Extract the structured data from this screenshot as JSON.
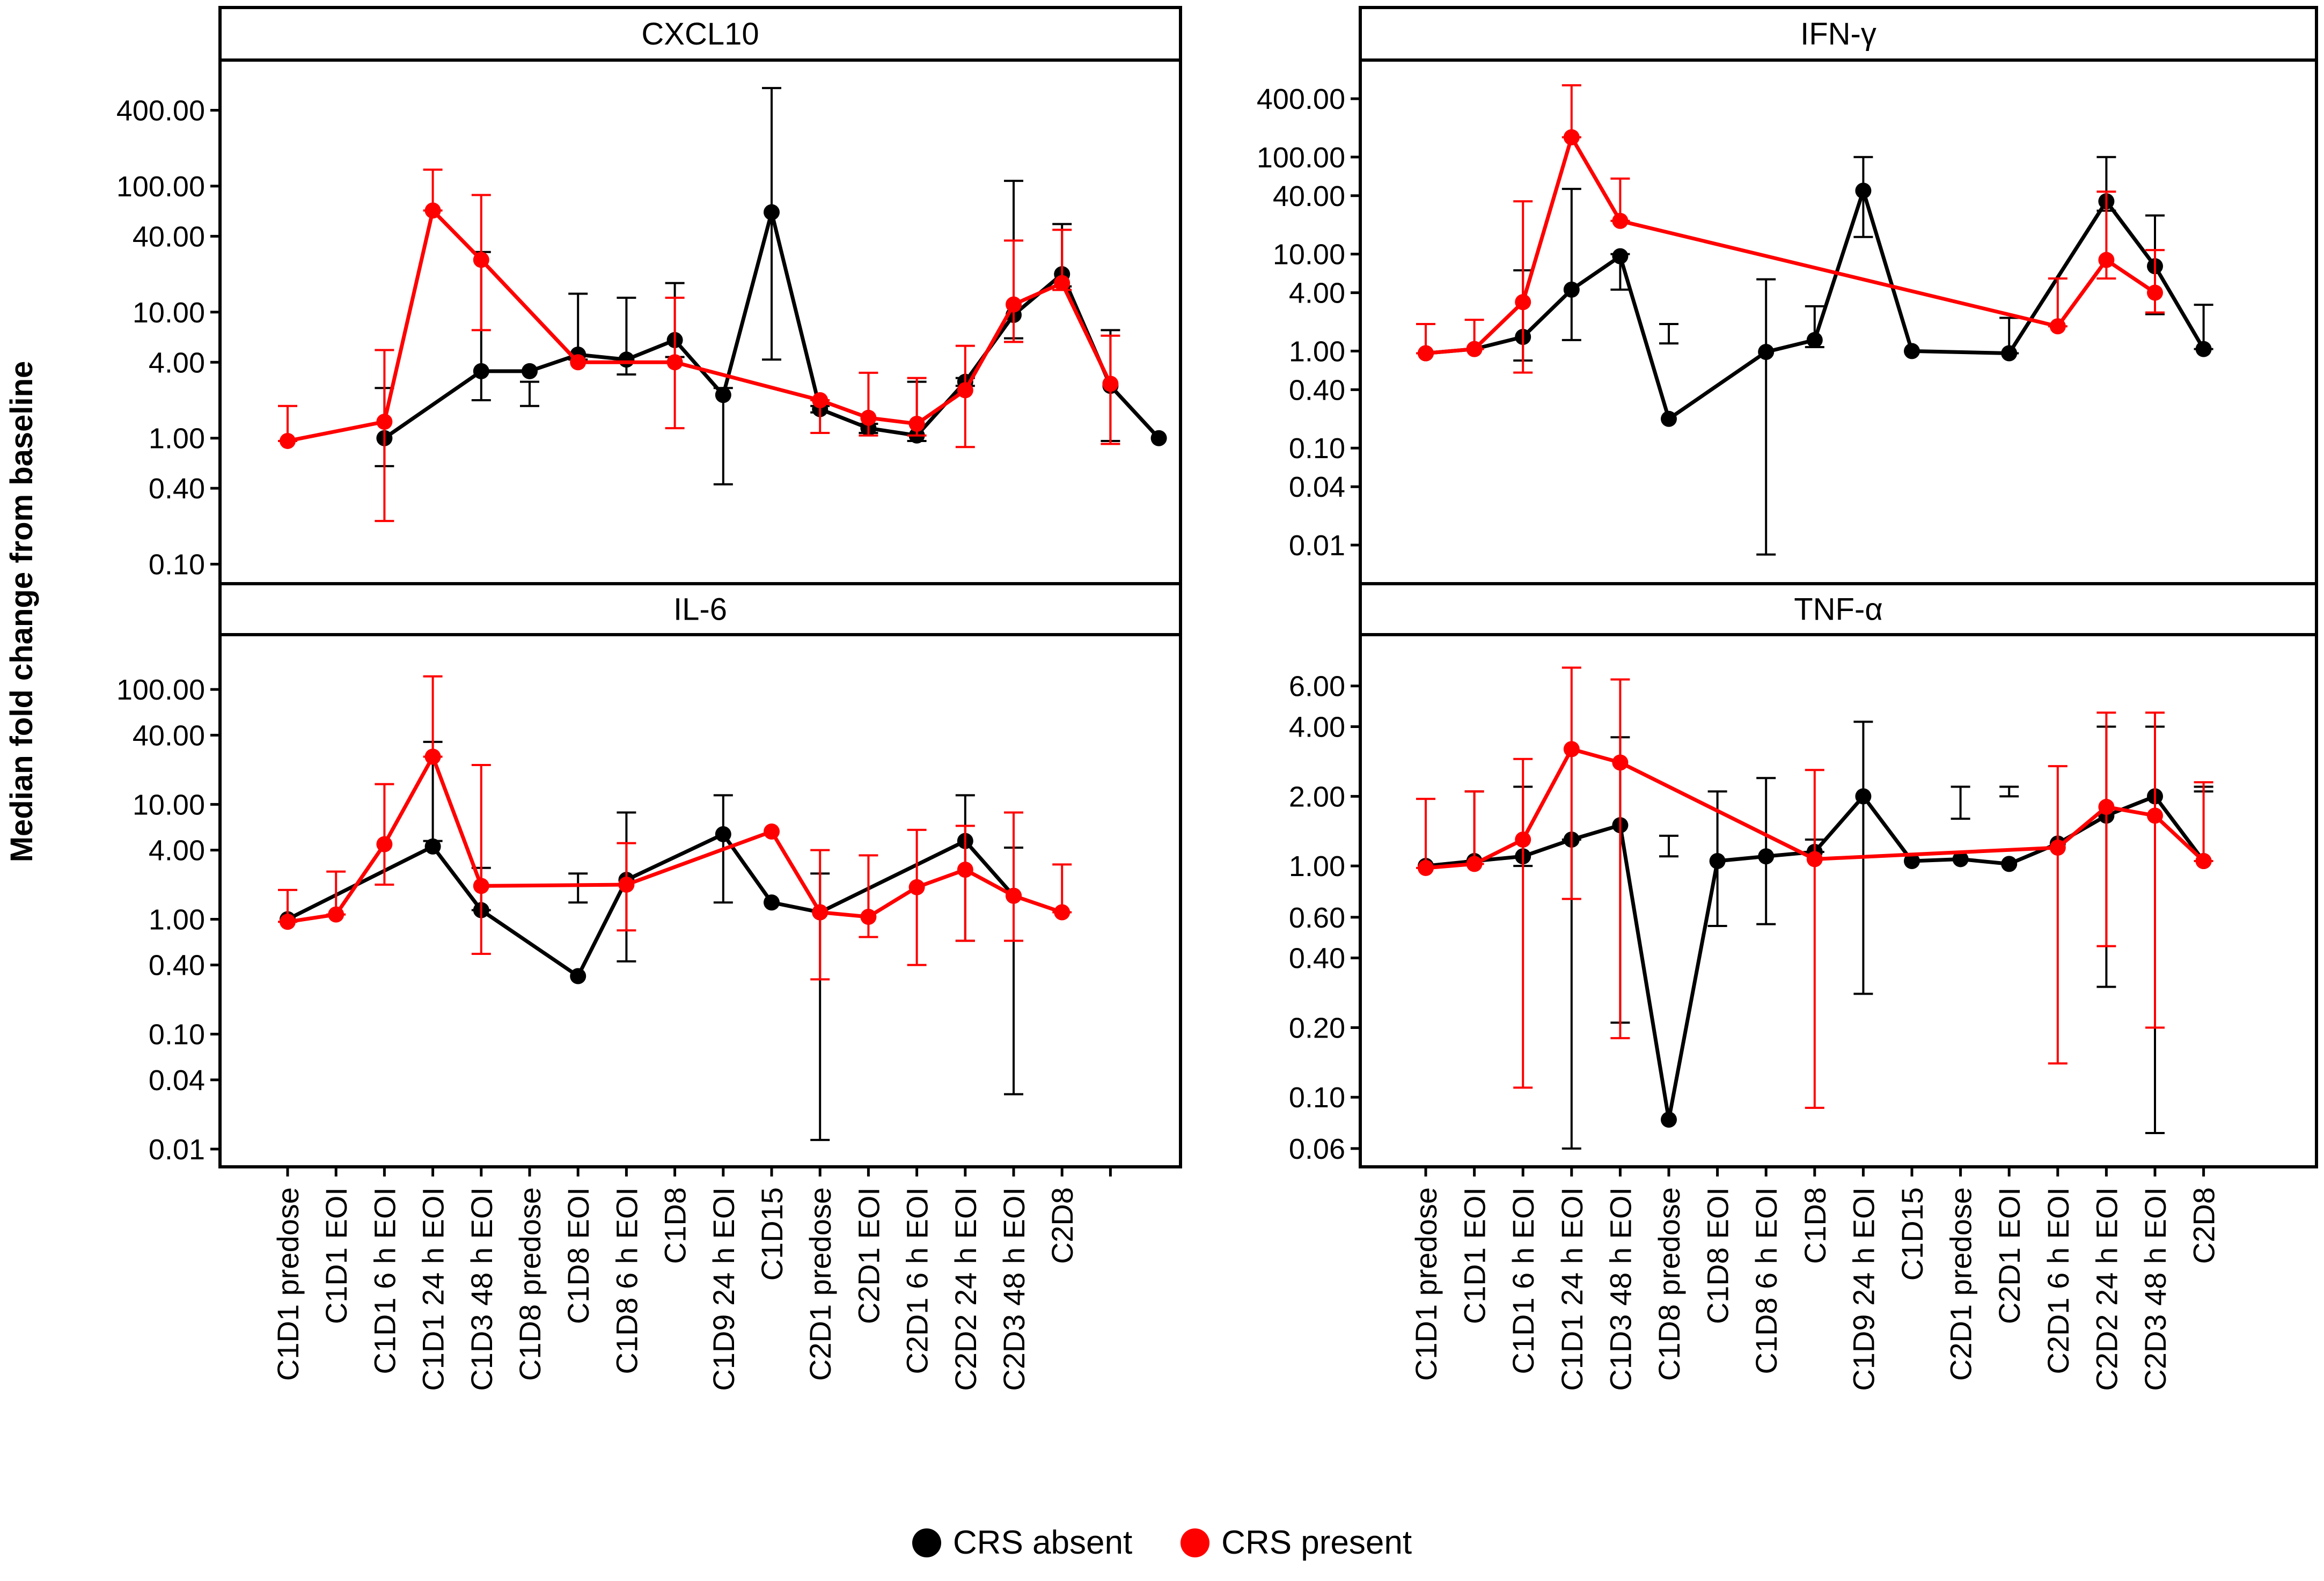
{
  "ylabel": "Median fold change from baseline",
  "legend": [
    {
      "name": "CRS absent",
      "color": "#000000"
    },
    {
      "name": "CRS present",
      "color": "#ff0000"
    }
  ],
  "chart_data": [
    {
      "type": "line",
      "title": "CXCL10",
      "yscale": "log",
      "ylim": [
        0.07,
        1000
      ],
      "yticks": [
        "400.00",
        "100.00",
        "40.00",
        "10.00",
        "4.00",
        "1.00",
        "0.40",
        "0.10"
      ],
      "categories": [
        "C1D1 predose",
        "C1D1 EOI",
        "C1D1 6 h EOI",
        "C1D1 24 h EOI",
        "C1D3 48 h EOI",
        "C1D8 predose",
        "C1D8 EOI",
        "C1D8 6 h EOI",
        "C1D8",
        "C1D9 24 h EOI",
        "C1D15",
        "C2D1 predose",
        "C2D1 EOI",
        "C2D1 6 h EOI",
        "C2D2 24 h EOI",
        "C2D3 48 h EOI",
        "C2D8"
      ],
      "series": [
        {
          "name": "CRS absent",
          "color": "#000000",
          "x": [
            2,
            4,
            5,
            6,
            7,
            8,
            9,
            10,
            11,
            12,
            13,
            14,
            15,
            16,
            17,
            18
          ],
          "y": [
            1.0,
            3.4,
            3.4,
            4.6,
            4.2,
            6.0,
            2.2,
            62,
            1.7,
            1.2,
            1.05,
            2.8,
            9.5,
            20,
            2.6,
            1.0
          ],
          "lo": [
            0.6,
            2.0,
            1.8,
            4.2,
            3.2,
            4.4,
            0.43,
            4.2,
            1.6,
            1.1,
            0.95,
            2.6,
            6.2,
            16,
            0.95,
            1.0
          ],
          "hi": [
            2.5,
            30,
            2.8,
            14,
            13,
            17,
            2.5,
            600,
            1.8,
            1.3,
            2.8,
            3.0,
            110,
            50,
            7.2,
            1.0
          ]
        },
        {
          "name": "CRS present",
          "color": "#ff0000",
          "x": [
            0,
            2,
            3,
            4,
            6,
            8,
            11,
            12,
            13,
            14,
            15,
            16,
            17
          ],
          "y": [
            0.95,
            1.35,
            64,
            26,
            4.0,
            4.0,
            2.0,
            1.45,
            1.3,
            2.4,
            11.5,
            17,
            2.7
          ],
          "lo": [
            0.95,
            0.22,
            64,
            7.2,
            4.0,
            1.2,
            1.1,
            1.05,
            1.05,
            0.85,
            5.8,
            15,
            0.9
          ],
          "hi": [
            1.8,
            5.0,
            135,
            85,
            4.0,
            13,
            2.0,
            3.3,
            3.0,
            5.4,
            37,
            45,
            6.5
          ]
        }
      ]
    },
    {
      "type": "line",
      "title": "IFN-γ",
      "yscale": "log",
      "ylim": [
        0.004,
        1000
      ],
      "yticks": [
        "400.00",
        "100.00",
        "40.00",
        "10.00",
        "4.00",
        "1.00",
        "0.40",
        "0.10",
        "0.04",
        "0.01"
      ],
      "categories": [
        "C1D1 predose",
        "C1D1 EOI",
        "C1D1 6 h EOI",
        "C1D1 24 h EOI",
        "C1D3 48 h EOI",
        "C1D8 predose",
        "C1D8 EOI",
        "C1D8 6 h EOI",
        "C1D8",
        "C1D9 24 h EOI",
        "C1D15",
        "C2D1 predose",
        "C2D1 EOI",
        "C2D1 6 h EOI",
        "C2D2 24 h EOI",
        "C2D3 48 h EOI",
        "C2D8"
      ],
      "series": [
        {
          "name": "CRS absent",
          "color": "#000000",
          "x": [
            0,
            1,
            2,
            3,
            4,
            5,
            7,
            8,
            9,
            10,
            12,
            14,
            15,
            16
          ],
          "y": [
            0.95,
            1.05,
            1.4,
            4.3,
            9.5,
            0.2,
            0.98,
            1.3,
            45,
            1.0,
            0.95,
            35,
            7.5,
            1.05
          ],
          "lo": [
            0.95,
            1.05,
            0.8,
            1.3,
            4.3,
            1.2,
            0.008,
            1.1,
            15,
            1.0,
            0.95,
            28,
            2.4,
            1.05
          ],
          "hi": [
            0.95,
            1.05,
            6.8,
            47,
            10,
            1.9,
            5.5,
            2.9,
            100,
            1.0,
            2.2,
            100,
            25,
            3.0
          ]
        },
        {
          "name": "CRS present",
          "color": "#ff0000",
          "x": [
            0,
            1,
            2,
            3,
            4,
            13,
            14,
            15
          ],
          "y": [
            0.95,
            1.05,
            3.2,
            160,
            22,
            1.8,
            8.7,
            4.0
          ],
          "lo": [
            0.95,
            1.05,
            0.6,
            160,
            22,
            1.8,
            5.6,
            2.5
          ],
          "hi": [
            1.9,
            2.1,
            35,
            550,
            60,
            5.6,
            44,
            11
          ]
        }
      ]
    },
    {
      "type": "line",
      "title": "IL-6",
      "yscale": "log",
      "ylim": [
        0.007,
        300
      ],
      "yticks": [
        "100.00",
        "40.00",
        "10.00",
        "4.00",
        "1.00",
        "0.40",
        "0.10",
        "0.04",
        "0.01"
      ],
      "categories": [
        "C1D1 predose",
        "C1D1 EOI",
        "C1D1 6 h EOI",
        "C1D1 24 h EOI",
        "C1D3 48 h EOI",
        "C1D8 predose",
        "C1D8 EOI",
        "C1D8 6 h EOI",
        "C1D8",
        "C1D9 24 h EOI",
        "C1D15",
        "C2D1 predose",
        "C2D1 EOI",
        "C2D1 6 h EOI",
        "C2D2 24 h EOI",
        "C2D3 48 h EOI",
        "C2D8"
      ],
      "series": [
        {
          "name": "CRS absent",
          "color": "#000000",
          "x": [
            0,
            3,
            4,
            6,
            7,
            9,
            10,
            11,
            14,
            15
          ],
          "y": [
            1.0,
            4.3,
            1.2,
            0.32,
            2.2,
            5.5,
            1.4,
            1.15,
            4.8,
            1.6
          ],
          "lo": [
            1.0,
            4.8,
            1.2,
            1.4,
            0.43,
            1.4,
            1.4,
            0.012,
            0.65,
            0.03
          ],
          "hi": [
            1.0,
            35,
            2.8,
            2.5,
            8.5,
            12,
            1.4,
            2.5,
            12,
            4.2
          ]
        },
        {
          "name": "CRS present",
          "color": "#ff0000",
          "x": [
            0,
            1,
            2,
            3,
            4,
            7,
            10,
            11,
            12,
            13,
            14,
            15,
            16
          ],
          "y": [
            0.95,
            1.1,
            4.5,
            26,
            1.95,
            2.0,
            5.8,
            1.15,
            1.05,
            1.9,
            2.7,
            1.6,
            1.15
          ],
          "lo": [
            0.95,
            1.1,
            2.0,
            26,
            0.5,
            0.8,
            5.8,
            0.3,
            0.7,
            0.4,
            0.65,
            0.65,
            1.15
          ],
          "hi": [
            1.8,
            2.6,
            15,
            130,
            22,
            4.6,
            5.8,
            4.0,
            3.6,
            6.0,
            6.5,
            8.5,
            3.0
          ]
        }
      ]
    },
    {
      "type": "line",
      "title": "TNF-α",
      "yscale": "log",
      "ylim": [
        0.05,
        10
      ],
      "yticks": [
        "6.00",
        "4.00",
        "2.00",
        "1.00",
        "0.60",
        "0.40",
        "0.20",
        "0.10",
        "0.06"
      ],
      "categories": [
        "C1D1 predose",
        "C1D1 EOI",
        "C1D1 6 h EOI",
        "C1D1 24 h EOI",
        "C1D3 48 h EOI",
        "C1D8 predose",
        "C1D8 EOI",
        "C1D8 6 h EOI",
        "C1D8",
        "C1D9 24 h EOI",
        "C1D15",
        "C2D1 predose",
        "C2D1 EOI",
        "C2D1 6 h EOI",
        "C2D2 24 h EOI",
        "C2D3 48 h EOI",
        "C2D8"
      ],
      "series": [
        {
          "name": "CRS absent",
          "color": "#000000",
          "x": [
            0,
            1,
            2,
            3,
            4,
            5,
            6,
            7,
            8,
            9,
            10,
            11,
            12,
            13,
            14,
            15,
            16
          ],
          "y": [
            1.0,
            1.05,
            1.1,
            1.3,
            1.5,
            0.08,
            1.05,
            1.1,
            1.15,
            2.0,
            1.05,
            1.07,
            1.02,
            1.25,
            1.65,
            2.0,
            1.05
          ],
          "lo": [
            1.0,
            1.05,
            1.0,
            0.06,
            0.21,
            1.1,
            0.55,
            0.56,
            1.15,
            0.28,
            1.05,
            1.6,
            2.0,
            1.25,
            0.3,
            0.07,
            2.1
          ],
          "hi": [
            1.0,
            2.1,
            2.2,
            1.3,
            3.6,
            1.35,
            2.1,
            2.4,
            1.3,
            4.2,
            1.05,
            2.2,
            2.2,
            1.25,
            4.0,
            4.0,
            2.2
          ]
        },
        {
          "name": "CRS present",
          "color": "#ff0000",
          "x": [
            0,
            1,
            2,
            3,
            4,
            8,
            13,
            14,
            15,
            16
          ],
          "y": [
            0.98,
            1.02,
            1.3,
            3.2,
            2.8,
            1.07,
            1.2,
            1.8,
            1.65,
            1.05
          ],
          "lo": [
            0.98,
            1.02,
            0.11,
            0.72,
            0.18,
            0.09,
            0.14,
            0.45,
            0.2,
            1.05
          ],
          "hi": [
            1.95,
            2.1,
            2.9,
            7.2,
            6.4,
            2.6,
            2.7,
            4.6,
            4.6,
            2.3
          ]
        }
      ]
    }
  ]
}
